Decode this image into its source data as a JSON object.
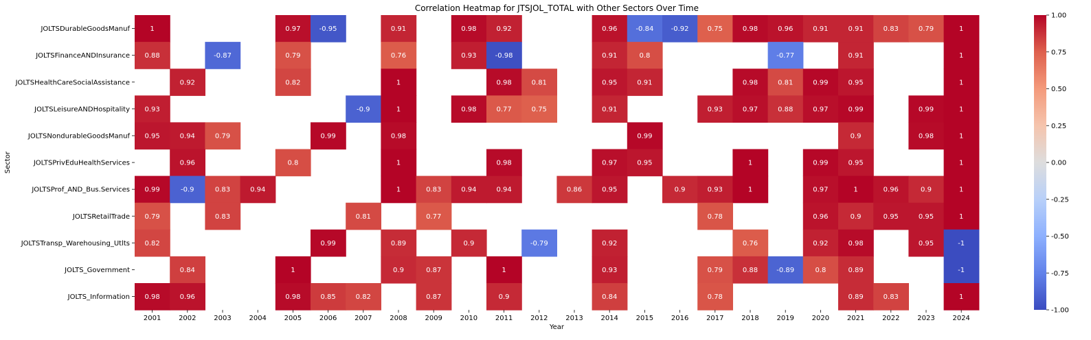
{
  "chart_data": {
    "type": "heatmap",
    "title": "Correlation Heatmap for JTSJOL_TOTAL with Other Sectors Over Time",
    "xlabel": "Year",
    "ylabel": "Sector",
    "colormap": "coolwarm",
    "vmin": -1.0,
    "vmax": 1.0,
    "colorbar_ticks": [
      "1.00",
      "0.75",
      "0.50",
      "0.25",
      "0.00",
      "-0.25",
      "-0.50",
      "-0.75",
      "-1.00"
    ],
    "x": [
      "2001",
      "2002",
      "2003",
      "2004",
      "2005",
      "2006",
      "2007",
      "2008",
      "2009",
      "2010",
      "2011",
      "2012",
      "2013",
      "2014",
      "2015",
      "2016",
      "2017",
      "2018",
      "2019",
      "2020",
      "2021",
      "2022",
      "2023",
      "2024"
    ],
    "y": [
      "JOLTSDurableGoodsManuf",
      "JOLTSFinanceANDInsurance",
      "JOLTSHealthCareSocialAssistance",
      "JOLTSLeisureANDHospitality",
      "JOLTSNondurableGoodsManuf",
      "JOLTSPrivEduHealthServices",
      "JOLTSProf_AND_Bus.Services",
      "JOLTSRetailTrade",
      "JOLTSTransp_Warehousing_Utlts",
      "JOLTS_Government",
      "JOLTS_Information"
    ],
    "values": [
      [
        1,
        null,
        null,
        null,
        0.97,
        -0.95,
        null,
        0.91,
        null,
        0.98,
        0.92,
        null,
        null,
        0.96,
        -0.84,
        -0.92,
        0.75,
        0.98,
        0.96,
        0.91,
        0.91,
        0.83,
        0.79,
        1
      ],
      [
        0.88,
        null,
        -0.87,
        null,
        0.79,
        null,
        null,
        0.76,
        null,
        0.93,
        -0.98,
        null,
        null,
        0.91,
        0.8,
        null,
        null,
        null,
        -0.77,
        null,
        0.91,
        null,
        null,
        1
      ],
      [
        null,
        0.92,
        null,
        null,
        0.82,
        null,
        null,
        1,
        null,
        null,
        0.98,
        0.81,
        null,
        0.95,
        0.91,
        null,
        null,
        0.98,
        0.81,
        0.99,
        0.95,
        null,
        null,
        1
      ],
      [
        0.93,
        null,
        null,
        null,
        null,
        null,
        -0.9,
        1,
        null,
        0.98,
        0.77,
        0.75,
        null,
        0.91,
        null,
        null,
        0.93,
        0.97,
        0.88,
        0.97,
        0.99,
        null,
        0.99,
        1
      ],
      [
        0.95,
        0.94,
        0.79,
        null,
        null,
        0.99,
        null,
        0.98,
        null,
        null,
        null,
        null,
        null,
        null,
        0.99,
        null,
        null,
        null,
        null,
        null,
        0.9,
        null,
        0.98,
        1
      ],
      [
        null,
        0.96,
        null,
        null,
        0.8,
        null,
        null,
        1,
        null,
        null,
        0.98,
        null,
        null,
        0.97,
        0.95,
        null,
        null,
        1,
        null,
        0.99,
        0.95,
        null,
        null,
        1
      ],
      [
        0.99,
        -0.9,
        0.83,
        0.94,
        null,
        null,
        null,
        1,
        0.83,
        0.94,
        0.94,
        null,
        0.86,
        0.95,
        null,
        0.9,
        0.93,
        1,
        null,
        0.97,
        1,
        0.96,
        0.9,
        1
      ],
      [
        0.79,
        null,
        0.83,
        null,
        null,
        null,
        0.81,
        null,
        0.77,
        null,
        null,
        null,
        null,
        null,
        null,
        null,
        0.78,
        null,
        null,
        0.96,
        0.9,
        0.95,
        0.95,
        1
      ],
      [
        0.82,
        null,
        null,
        null,
        null,
        0.99,
        null,
        0.89,
        null,
        0.9,
        null,
        -0.79,
        null,
        0.92,
        null,
        null,
        null,
        0.76,
        null,
        0.92,
        0.98,
        null,
        0.95,
        -1
      ],
      [
        null,
        0.84,
        null,
        null,
        1,
        null,
        null,
        0.9,
        0.87,
        null,
        1,
        null,
        null,
        0.93,
        null,
        null,
        0.79,
        0.88,
        -0.89,
        0.8,
        0.89,
        null,
        null,
        -1
      ],
      [
        0.98,
        0.96,
        null,
        null,
        0.98,
        0.85,
        0.82,
        null,
        0.87,
        null,
        0.9,
        null,
        null,
        0.84,
        null,
        null,
        0.78,
        null,
        null,
        null,
        0.89,
        0.83,
        null,
        1
      ]
    ],
    "annotations": true,
    "grid": false
  }
}
